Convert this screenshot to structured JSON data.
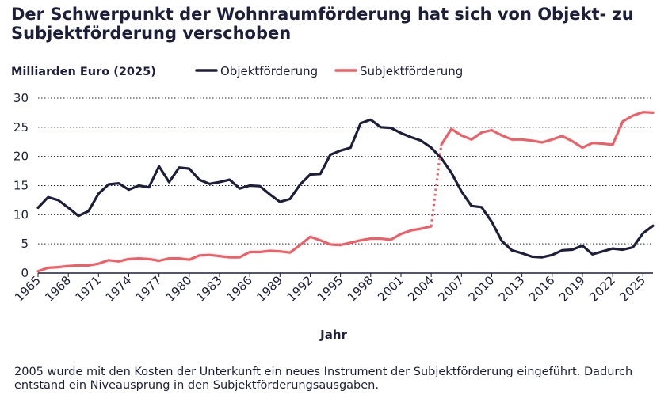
{
  "title": "Der Schwerpunkt der Wohnraumförderung hat sich von Objekt- zu Subjektförderung verschoben",
  "note": "2005 wurde mit den Kosten der Unterkunft ein neues Instrument der Subjektförderung eingeführt. Dadurch entstand ein Niveausprung in den Subjektförderungsausgaben.",
  "colors": {
    "objekt": "#1c1e3a",
    "subjekt": "#ef5f66",
    "grid": "#1c1e3a"
  },
  "chart_data": {
    "type": "line",
    "ylabel": "Milliarden Euro (2025)",
    "xlabel": "Jahr",
    "ylim": [
      0,
      30
    ],
    "xlim": [
      1965,
      2026
    ],
    "yticks": [
      0,
      5,
      10,
      15,
      20,
      25,
      30
    ],
    "xticks": [
      "1965",
      "1968",
      "1971",
      "1974",
      "1977",
      "1980",
      "1983",
      "1986",
      "1989",
      "1992",
      "1995",
      "1998",
      "2001",
      "2004",
      "2007",
      "2010",
      "2013",
      "2016",
      "2019",
      "2022",
      "2025"
    ],
    "grid": "horizontal dotted",
    "legend": "top",
    "series": [
      {
        "name": "Objektförderung",
        "x": [
          1965,
          1966,
          1967,
          1968,
          1969,
          1970,
          1971,
          1972,
          1973,
          1974,
          1975,
          1976,
          1977,
          1978,
          1979,
          1980,
          1981,
          1982,
          1983,
          1984,
          1985,
          1986,
          1987,
          1988,
          1989,
          1990,
          1991,
          1992,
          1993,
          1994,
          1995,
          1996,
          1997,
          1998,
          1999,
          2000,
          2001,
          2002,
          2003,
          2004,
          2005,
          2006,
          2007,
          2008,
          2009,
          2010,
          2011,
          2012,
          2013,
          2014,
          2015,
          2016,
          2017,
          2018,
          2019,
          2020,
          2021,
          2022,
          2023,
          2024,
          2025,
          2026
        ],
        "values": [
          11.2,
          13.0,
          12.5,
          11.2,
          9.8,
          10.6,
          13.6,
          15.2,
          15.4,
          14.3,
          15.0,
          14.7,
          18.3,
          15.6,
          18.1,
          17.9,
          16.0,
          15.3,
          15.6,
          16.0,
          14.5,
          15.0,
          14.9,
          13.5,
          12.2,
          12.7,
          15.2,
          16.9,
          17.0,
          20.3,
          21.0,
          21.5,
          25.7,
          26.3,
          25.0,
          24.9,
          24.0,
          23.3,
          22.7,
          21.5,
          19.7,
          17.2,
          14.0,
          11.5,
          11.3,
          8.8,
          5.5,
          3.9,
          3.4,
          2.8,
          2.7,
          3.1,
          3.9,
          4.0,
          4.7,
          3.2,
          3.7,
          4.2,
          4.0,
          4.4,
          6.8,
          8.1
        ]
      },
      {
        "name": "Subjektförderung",
        "x": [
          1965,
          1966,
          1967,
          1968,
          1969,
          1970,
          1971,
          1972,
          1973,
          1974,
          1975,
          1976,
          1977,
          1978,
          1979,
          1980,
          1981,
          1982,
          1983,
          1984,
          1985,
          1986,
          1987,
          1988,
          1989,
          1990,
          1991,
          1992,
          1993,
          1994,
          1995,
          1996,
          1997,
          1998,
          1999,
          2000,
          2001,
          2002,
          2003,
          2004,
          2005,
          2006,
          2007,
          2008,
          2009,
          2010,
          2011,
          2012,
          2013,
          2014,
          2015,
          2016,
          2017,
          2018,
          2019,
          2020,
          2021,
          2022,
          2023,
          2024,
          2025,
          2026
        ],
        "values": [
          0.3,
          0.9,
          1.0,
          1.2,
          1.3,
          1.3,
          1.6,
          2.2,
          2.0,
          2.4,
          2.5,
          2.4,
          2.1,
          2.5,
          2.5,
          2.3,
          3.0,
          3.1,
          2.9,
          2.7,
          2.7,
          3.6,
          3.6,
          3.8,
          3.7,
          3.5,
          4.8,
          6.2,
          5.6,
          4.9,
          4.8,
          5.2,
          5.6,
          5.9,
          5.9,
          5.7,
          6.7,
          7.3,
          7.6,
          8.0,
          22.0,
          24.7,
          23.6,
          22.9,
          24.1,
          24.5,
          23.6,
          22.9,
          22.9,
          22.7,
          22.4,
          22.9,
          23.5,
          22.6,
          21.5,
          22.3,
          22.2,
          22.0,
          26.0,
          27.0,
          27.6,
          27.5
        ],
        "dotted_segment": [
          2004,
          2005
        ]
      }
    ]
  }
}
